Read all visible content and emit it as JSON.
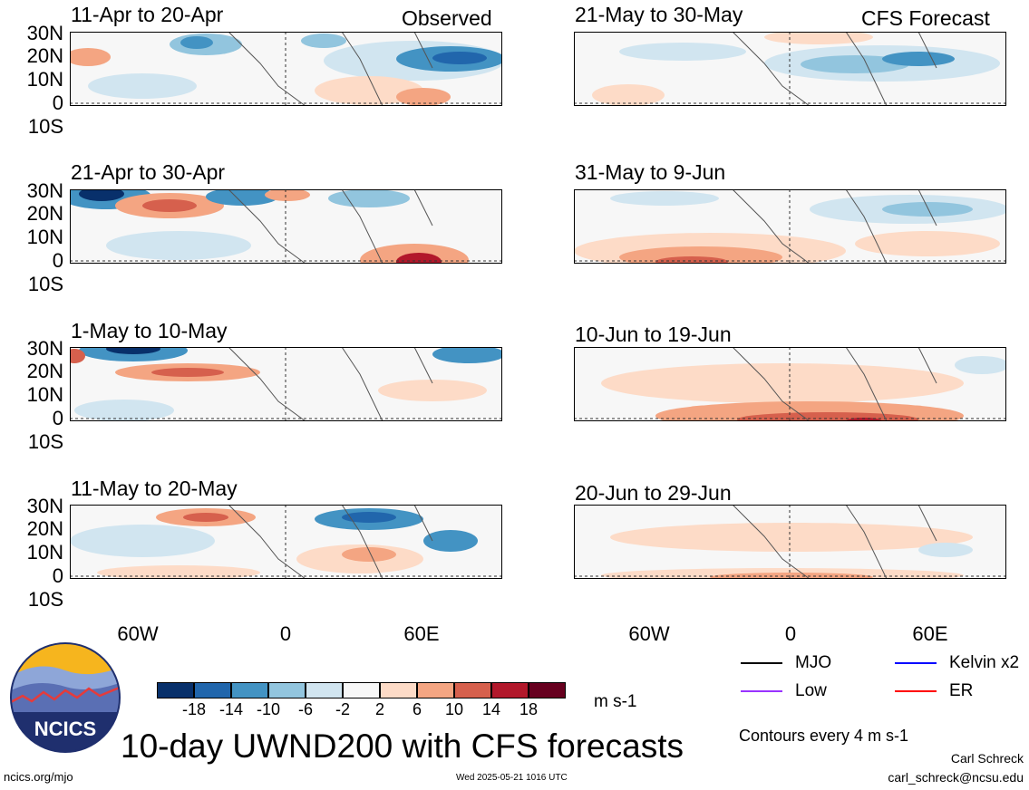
{
  "labels": {
    "observed": "Observed",
    "forecast": "CFS Forecast",
    "lat_ticks": [
      "30N",
      "20N",
      "10N",
      "0",
      "10S"
    ],
    "lon_ticks": [
      "60W",
      "0",
      "60E"
    ]
  },
  "panels": [
    {
      "period": "11-Apr to 20-Apr",
      "source": "observed"
    },
    {
      "period": "21-Apr to 30-Apr",
      "source": "observed"
    },
    {
      "period": "1-May to 10-May",
      "source": "observed"
    },
    {
      "period": "11-May to 20-May",
      "source": "observed"
    },
    {
      "period": "21-May to 30-May",
      "source": "forecast"
    },
    {
      "period": "31-May to 9-Jun",
      "source": "forecast"
    },
    {
      "period": "10-Jun to 19-Jun",
      "source": "forecast"
    },
    {
      "period": "20-Jun to 29-Jun",
      "source": "forecast"
    }
  ],
  "colorbar": {
    "ticks": [
      "-18",
      "-14",
      "-10",
      "-6",
      "-2",
      "2",
      "6",
      "10",
      "14",
      "18"
    ],
    "colors": [
      "#08306b",
      "#2166ac",
      "#4393c3",
      "#92c5de",
      "#d1e5f0",
      "#f7f7f7",
      "#fddbc7",
      "#f4a582",
      "#d6604d",
      "#b2182b",
      "#67001f"
    ],
    "unit": "m s-1"
  },
  "legend": {
    "items": [
      {
        "label": "MJO",
        "color": "#000000"
      },
      {
        "label": "Kelvin x2",
        "color": "#0000ff"
      },
      {
        "label": "Low",
        "color": "#9933ff"
      },
      {
        "label": "ER",
        "color": "#ff0000"
      }
    ],
    "contours": "Contours every 4 m s-1"
  },
  "logo": {
    "text": "NCICS"
  },
  "title": "10-day UWND200 with CFS forecasts",
  "footer": {
    "url": "ncics.org/mjo",
    "timestamp": "Wed 2025-05-21 1016 UTC",
    "author": "Carl Schreck",
    "email": "carl_schreck@ncsu.edu"
  }
}
